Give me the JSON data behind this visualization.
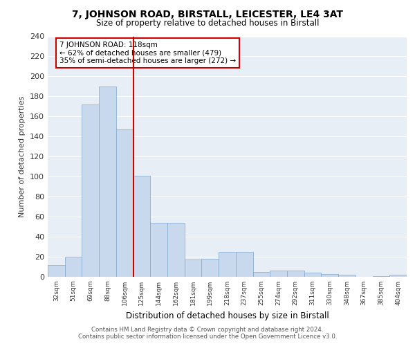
{
  "title": "7, JOHNSON ROAD, BIRSTALL, LEICESTER, LE4 3AT",
  "subtitle": "Size of property relative to detached houses in Birstall",
  "xlabel": "Distribution of detached houses by size in Birstall",
  "ylabel": "Number of detached properties",
  "bar_labels": [
    "32sqm",
    "51sqm",
    "69sqm",
    "88sqm",
    "106sqm",
    "125sqm",
    "144sqm",
    "162sqm",
    "181sqm",
    "199sqm",
    "218sqm",
    "237sqm",
    "255sqm",
    "274sqm",
    "292sqm",
    "311sqm",
    "330sqm",
    "348sqm",
    "367sqm",
    "385sqm",
    "404sqm"
  ],
  "bar_values": [
    12,
    20,
    172,
    190,
    147,
    101,
    54,
    54,
    17,
    18,
    25,
    25,
    5,
    6,
    6,
    4,
    3,
    2,
    0,
    1,
    2
  ],
  "bar_color": "#c9d9ed",
  "bar_edge_color": "#7fa8cc",
  "background_color": "#e8eef6",
  "grid_color": "#ffffff",
  "vline_color": "#cc0000",
  "annotation_text": "7 JOHNSON ROAD: 118sqm\n← 62% of detached houses are smaller (479)\n35% of semi-detached houses are larger (272) →",
  "annotation_box_color": "#ffffff",
  "annotation_box_edge": "#cc0000",
  "footer_text": "Contains HM Land Registry data © Crown copyright and database right 2024.\nContains public sector information licensed under the Open Government Licence v3.0.",
  "ylim": [
    0,
    240
  ],
  "yticks": [
    0,
    20,
    40,
    60,
    80,
    100,
    120,
    140,
    160,
    180,
    200,
    220,
    240
  ]
}
